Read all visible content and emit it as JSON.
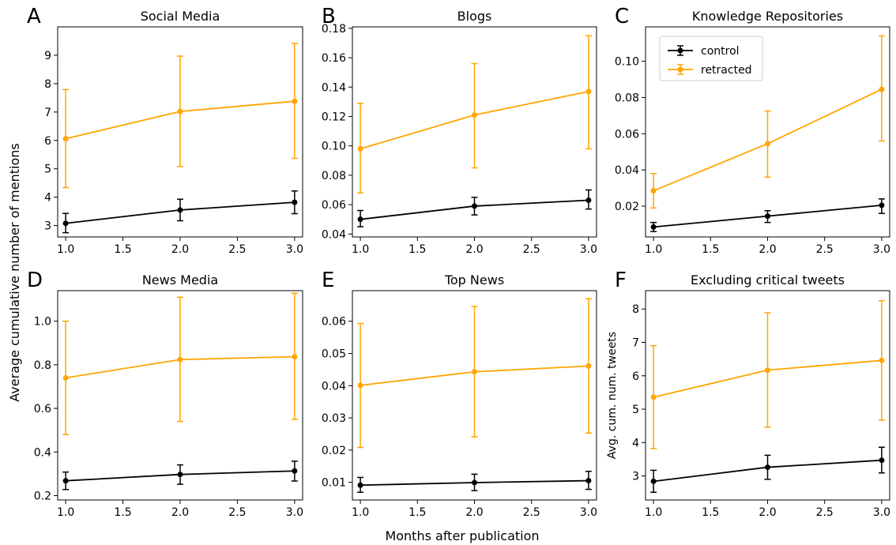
{
  "figure": {
    "ylabel": "Average cumulative number of mentions",
    "xlabel": "Months after publication"
  },
  "colors": {
    "control": "#000000",
    "retracted": "#FFA500"
  },
  "chart_data": [
    {
      "type": "line",
      "letter": "A",
      "title": "Social Media",
      "ylabel": "",
      "x": [
        1.0,
        2.0,
        3.0
      ],
      "xticks": [
        "1.0",
        "1.5",
        "2.0",
        "2.5",
        "3.0"
      ],
      "xlim": [
        0.93,
        3.07
      ],
      "ylim": [
        2.6,
        10.0
      ],
      "yticks": [
        "3",
        "4",
        "5",
        "6",
        "7",
        "8",
        "9"
      ],
      "series": [
        {
          "name": "control",
          "color": "#000000",
          "values": [
            3.08,
            3.55,
            3.82
          ],
          "err_low": [
            2.75,
            3.17,
            3.42
          ],
          "err_high": [
            3.43,
            3.93,
            4.22
          ]
        },
        {
          "name": "retracted",
          "color": "#FFA500",
          "values": [
            6.06,
            7.02,
            7.38
          ],
          "err_low": [
            4.34,
            5.08,
            5.37
          ],
          "err_high": [
            7.79,
            8.97,
            9.42
          ]
        }
      ]
    },
    {
      "type": "line",
      "letter": "B",
      "title": "Blogs",
      "ylabel": "",
      "x": [
        1.0,
        2.0,
        3.0
      ],
      "xticks": [
        "1.0",
        "1.5",
        "2.0",
        "2.5",
        "3.0"
      ],
      "xlim": [
        0.93,
        3.07
      ],
      "ylim": [
        0.038,
        0.181
      ],
      "yticks": [
        "0.04",
        "0.06",
        "0.08",
        "0.10",
        "0.12",
        "0.14",
        "0.16",
        "0.18"
      ],
      "series": [
        {
          "name": "control",
          "color": "#000000",
          "values": [
            0.05,
            0.059,
            0.063
          ],
          "err_low": [
            0.045,
            0.053,
            0.057
          ],
          "err_high": [
            0.056,
            0.065,
            0.07
          ]
        },
        {
          "name": "retracted",
          "color": "#FFA500",
          "values": [
            0.098,
            0.121,
            0.137
          ],
          "err_low": [
            0.068,
            0.085,
            0.098
          ],
          "err_high": [
            0.129,
            0.156,
            0.175
          ]
        }
      ]
    },
    {
      "type": "line",
      "letter": "C",
      "title": "Knowledge Repositories",
      "ylabel": "",
      "legend": [
        "control",
        "retracted"
      ],
      "legend_loc": "upper-left",
      "x": [
        1.0,
        2.0,
        3.0
      ],
      "xticks": [
        "1.0",
        "1.5",
        "2.0",
        "2.5",
        "3.0"
      ],
      "xlim": [
        0.93,
        3.07
      ],
      "ylim": [
        0.003,
        0.119
      ],
      "yticks": [
        "0.02",
        "0.04",
        "0.06",
        "0.08",
        "0.10"
      ],
      "series": [
        {
          "name": "control",
          "color": "#000000",
          "values": [
            0.0085,
            0.0145,
            0.0205
          ],
          "err_low": [
            0.006,
            0.011,
            0.016
          ],
          "err_high": [
            0.011,
            0.0175,
            0.024
          ]
        },
        {
          "name": "retracted",
          "color": "#FFA500",
          "values": [
            0.0285,
            0.0545,
            0.0845
          ],
          "err_low": [
            0.019,
            0.036,
            0.056
          ],
          "err_high": [
            0.038,
            0.0725,
            0.114
          ]
        }
      ]
    },
    {
      "type": "line",
      "letter": "D",
      "title": "News Media",
      "ylabel": "",
      "x": [
        1.0,
        2.0,
        3.0
      ],
      "xticks": [
        "1.0",
        "1.5",
        "2.0",
        "2.5",
        "3.0"
      ],
      "xlim": [
        0.93,
        3.07
      ],
      "ylim": [
        0.18,
        1.14
      ],
      "yticks": [
        "0.2",
        "0.4",
        "0.6",
        "0.8",
        "1.0"
      ],
      "series": [
        {
          "name": "control",
          "color": "#000000",
          "values": [
            0.268,
            0.297,
            0.313
          ],
          "err_low": [
            0.228,
            0.252,
            0.267
          ],
          "err_high": [
            0.308,
            0.341,
            0.358
          ]
        },
        {
          "name": "retracted",
          "color": "#FFA500",
          "values": [
            0.74,
            0.824,
            0.837
          ],
          "err_low": [
            0.48,
            0.54,
            0.55
          ],
          "err_high": [
            1.0,
            1.11,
            1.128
          ]
        }
      ]
    },
    {
      "type": "line",
      "letter": "E",
      "title": "Top News",
      "ylabel": "",
      "x": [
        1.0,
        2.0,
        3.0
      ],
      "xticks": [
        "1.0",
        "1.5",
        "2.0",
        "2.5",
        "3.0"
      ],
      "xlim": [
        0.93,
        3.07
      ],
      "ylim": [
        0.0045,
        0.0695
      ],
      "yticks": [
        "0.01",
        "0.02",
        "0.03",
        "0.04",
        "0.05",
        "0.06"
      ],
      "series": [
        {
          "name": "control",
          "color": "#000000",
          "values": [
            0.0091,
            0.0099,
            0.0105
          ],
          "err_low": [
            0.0069,
            0.0074,
            0.0078
          ],
          "err_high": [
            0.0115,
            0.0125,
            0.0134
          ]
        },
        {
          "name": "retracted",
          "color": "#FFA500",
          "values": [
            0.0401,
            0.0443,
            0.0461
          ],
          "err_low": [
            0.0208,
            0.0241,
            0.0253
          ],
          "err_high": [
            0.0593,
            0.0646,
            0.067
          ]
        }
      ]
    },
    {
      "type": "line",
      "letter": "F",
      "title": "Excluding critical tweets",
      "ylabel": "Avg. cum. num. tweets",
      "x": [
        1.0,
        2.0,
        3.0
      ],
      "xticks": [
        "1.0",
        "1.5",
        "2.0",
        "2.5",
        "3.0"
      ],
      "xlim": [
        0.93,
        3.07
      ],
      "ylim": [
        2.28,
        8.55
      ],
      "yticks": [
        "3",
        "4",
        "5",
        "6",
        "7",
        "8"
      ],
      "series": [
        {
          "name": "control",
          "color": "#000000",
          "values": [
            2.84,
            3.26,
            3.47
          ],
          "err_low": [
            2.51,
            2.9,
            3.09
          ],
          "err_high": [
            3.17,
            3.62,
            3.86
          ]
        },
        {
          "name": "retracted",
          "color": "#FFA500",
          "values": [
            5.36,
            6.17,
            6.46
          ],
          "err_low": [
            3.82,
            4.46,
            4.67
          ],
          "err_high": [
            6.9,
            7.89,
            8.25
          ]
        }
      ]
    }
  ]
}
